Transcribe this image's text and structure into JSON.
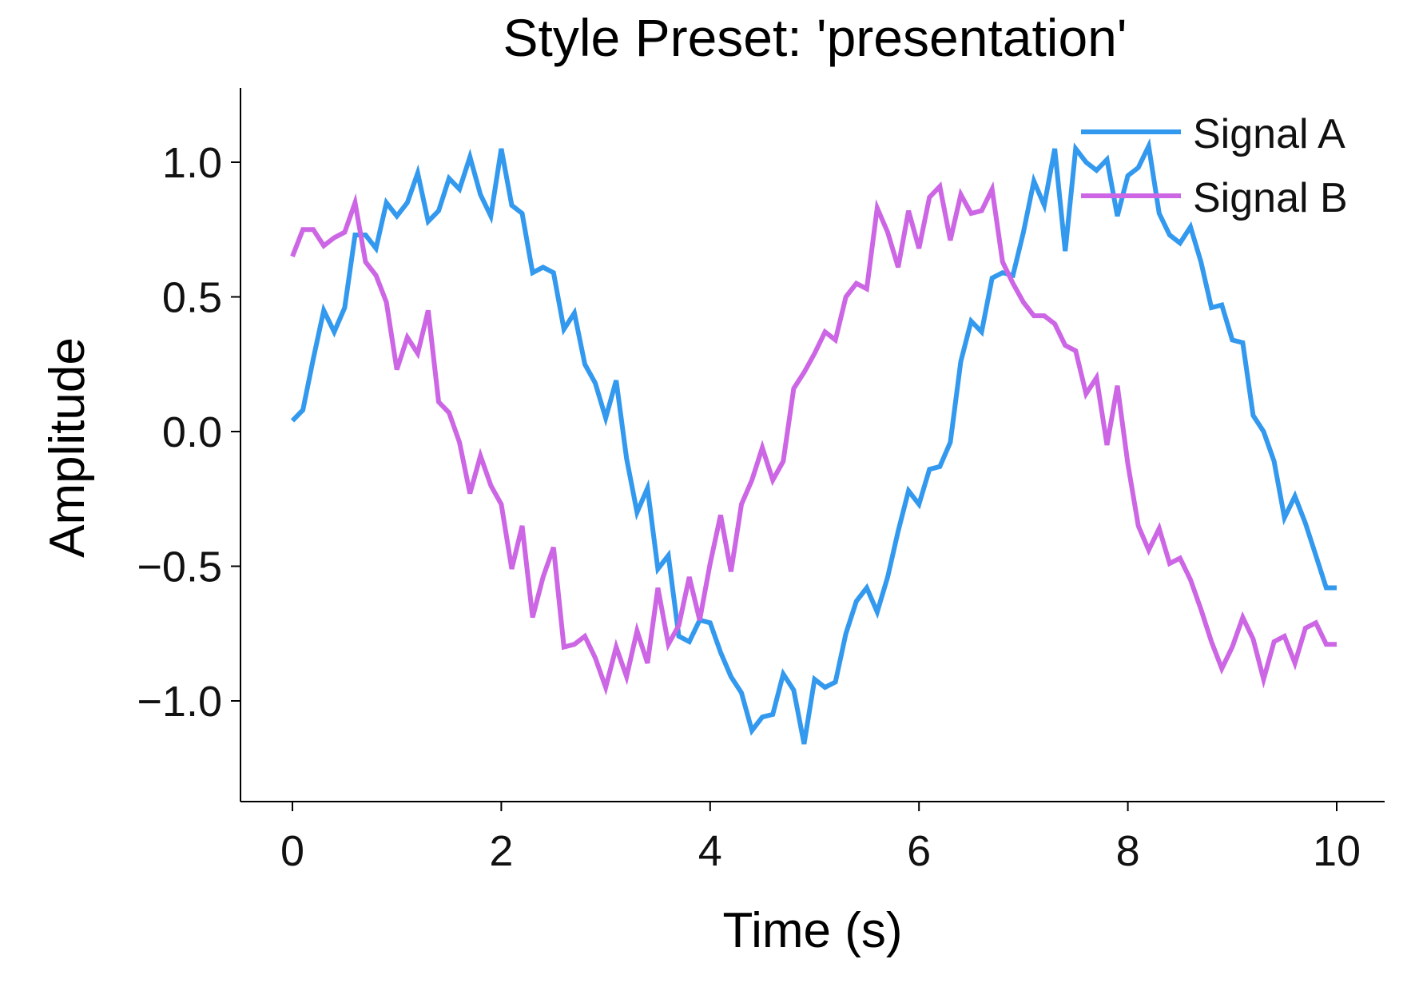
{
  "chart_data": {
    "type": "line",
    "title": "Style Preset: 'presentation'",
    "xlabel": "Time (s)",
    "ylabel": "Amplitude",
    "xlim": [
      -0.5,
      10.5
    ],
    "ylim": [
      -1.37,
      1.28
    ],
    "xticks": [
      "0",
      "2",
      "4",
      "6",
      "8",
      "10"
    ],
    "xtick_values": [
      0,
      2,
      4,
      6,
      8,
      10
    ],
    "yticks": [
      "1.0",
      "0.5",
      "0.0",
      "−0.5",
      "−1.0"
    ],
    "ytick_values": [
      1.0,
      0.5,
      0.0,
      -0.5,
      -1.0
    ],
    "grid": false,
    "legend_position": "upper right",
    "x": [
      0,
      0.1,
      0.2,
      0.3,
      0.4,
      0.5,
      0.6,
      0.7,
      0.8,
      0.9,
      1.0,
      1.1,
      1.2,
      1.3,
      1.4,
      1.5,
      1.6,
      1.7,
      1.8,
      1.9,
      2.0,
      2.1,
      2.2,
      2.3,
      2.4,
      2.5,
      2.6,
      2.7,
      2.8,
      2.9,
      3.0,
      3.1,
      3.2,
      3.3,
      3.4,
      3.5,
      3.6,
      3.7,
      3.8,
      3.9,
      4.0,
      4.1,
      4.2,
      4.3,
      4.4,
      4.5,
      4.6,
      4.7,
      4.8,
      4.9,
      5.0,
      5.1,
      5.2,
      5.3,
      5.4,
      5.5,
      5.6,
      5.7,
      5.8,
      5.9,
      6.0,
      6.1,
      6.2,
      6.3,
      6.4,
      6.5,
      6.6,
      6.7,
      6.8,
      6.9,
      7.0,
      7.1,
      7.2,
      7.3,
      7.4,
      7.5,
      7.6,
      7.7,
      7.8,
      7.9,
      8.0,
      8.1,
      8.2,
      8.3,
      8.4,
      8.5,
      8.6,
      8.7,
      8.8,
      8.9,
      9.0,
      9.1,
      9.2,
      9.3,
      9.4,
      9.5,
      9.6,
      9.7,
      9.8,
      9.9,
      10.0
    ],
    "series": [
      {
        "name": "Signal A",
        "color": "#3399ee",
        "values": [
          0.04,
          0.08,
          0.27,
          0.45,
          0.37,
          0.46,
          0.73,
          0.73,
          0.68,
          0.85,
          0.8,
          0.85,
          0.96,
          0.78,
          0.82,
          0.94,
          0.9,
          1.02,
          0.88,
          0.8,
          1.05,
          0.84,
          0.81,
          0.59,
          0.61,
          0.59,
          0.38,
          0.44,
          0.25,
          0.18,
          0.05,
          0.19,
          -0.1,
          -0.3,
          -0.21,
          -0.51,
          -0.46,
          -0.76,
          -0.78,
          -0.7,
          -0.71,
          -0.82,
          -0.91,
          -0.97,
          -1.11,
          -1.06,
          -1.05,
          -0.9,
          -0.96,
          -1.16,
          -0.92,
          -0.95,
          -0.93,
          -0.75,
          -0.63,
          -0.58,
          -0.67,
          -0.54,
          -0.37,
          -0.22,
          -0.27,
          -0.14,
          -0.13,
          -0.04,
          0.26,
          0.41,
          0.37,
          0.57,
          0.59,
          0.58,
          0.74,
          0.93,
          0.84,
          1.05,
          0.67,
          1.05,
          1.0,
          0.97,
          1.01,
          0.8,
          0.95,
          0.98,
          1.06,
          0.81,
          0.73,
          0.7,
          0.76,
          0.63,
          0.46,
          0.47,
          0.34,
          0.33,
          0.06,
          0.0,
          -0.11,
          -0.32,
          -0.24,
          -0.34,
          -0.46,
          -0.58,
          -0.58
        ]
      },
      {
        "name": "Signal B",
        "color": "#cc66e5",
        "values": [
          0.65,
          0.75,
          0.75,
          0.69,
          0.72,
          0.74,
          0.85,
          0.63,
          0.58,
          0.48,
          0.23,
          0.35,
          0.29,
          0.45,
          0.11,
          0.07,
          -0.04,
          -0.23,
          -0.09,
          -0.2,
          -0.27,
          -0.51,
          -0.35,
          -0.69,
          -0.54,
          -0.43,
          -0.8,
          -0.79,
          -0.76,
          -0.84,
          -0.95,
          -0.8,
          -0.91,
          -0.74,
          -0.86,
          -0.58,
          -0.79,
          -0.72,
          -0.54,
          -0.7,
          -0.49,
          -0.31,
          -0.52,
          -0.27,
          -0.18,
          -0.06,
          -0.18,
          -0.11,
          0.16,
          0.22,
          0.29,
          0.37,
          0.34,
          0.5,
          0.55,
          0.53,
          0.83,
          0.74,
          0.61,
          0.82,
          0.68,
          0.87,
          0.91,
          0.71,
          0.88,
          0.81,
          0.82,
          0.9,
          0.63,
          0.55,
          0.48,
          0.43,
          0.43,
          0.4,
          0.32,
          0.3,
          0.14,
          0.2,
          -0.05,
          0.17,
          -0.12,
          -0.35,
          -0.44,
          -0.36,
          -0.49,
          -0.47,
          -0.55,
          -0.66,
          -0.78,
          -0.88,
          -0.8,
          -0.69,
          -0.77,
          -0.92,
          -0.78,
          -0.76,
          -0.86,
          -0.73,
          -0.71,
          -0.79,
          -0.79
        ]
      }
    ]
  }
}
